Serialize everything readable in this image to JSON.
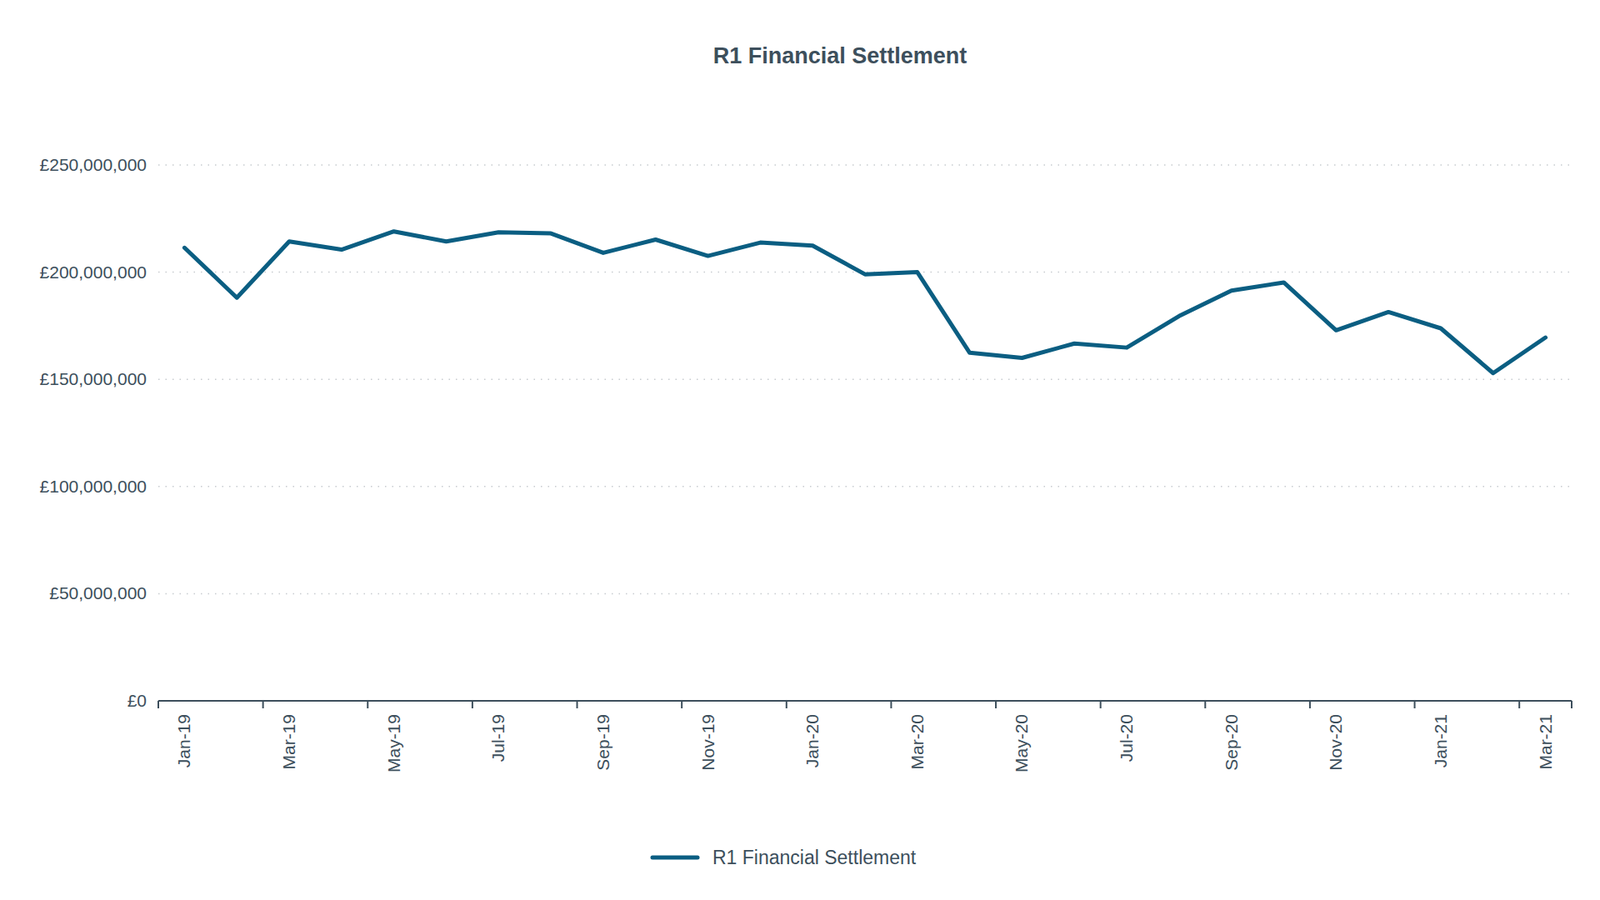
{
  "chart_data": {
    "type": "line",
    "title": "R1 Financial Settlement",
    "categories": [
      "Jan-19",
      null,
      "Mar-19",
      null,
      "May-19",
      null,
      "Jul-19",
      null,
      "Sep-19",
      null,
      "Nov-19",
      null,
      "Jan-20",
      null,
      "Mar-20",
      null,
      "May-20",
      null,
      "Jul-20",
      null,
      "Sep-20",
      null,
      "Nov-20",
      null,
      "Jan-21",
      null,
      "Mar-21"
    ],
    "series": [
      {
        "name": "R1 Financial Settlement",
        "color": "#0b5e82",
        "values": [
          211400000,
          188100000,
          214300000,
          210500000,
          219000000,
          214300000,
          218600000,
          218100000,
          209000000,
          215200000,
          207600000,
          213800000,
          212400000,
          199000000,
          200000000,
          162400000,
          160000000,
          166700000,
          164800000,
          179500000,
          191400000,
          195200000,
          172900000,
          181400000,
          173800000,
          152900000,
          169500000
        ]
      }
    ],
    "ylim": [
      0,
      250000000
    ],
    "yticks": [
      {
        "value": 0,
        "label": "£0"
      },
      {
        "value": 50000000,
        "label": "£50,000,000"
      },
      {
        "value": 100000000,
        "label": "£100,000,000"
      },
      {
        "value": 150000000,
        "label": "£150,000,000"
      },
      {
        "value": 200000000,
        "label": "£200,000,000"
      },
      {
        "value": 250000000,
        "label": "£250,000,000"
      }
    ],
    "grid": true,
    "legend": "bottom"
  }
}
